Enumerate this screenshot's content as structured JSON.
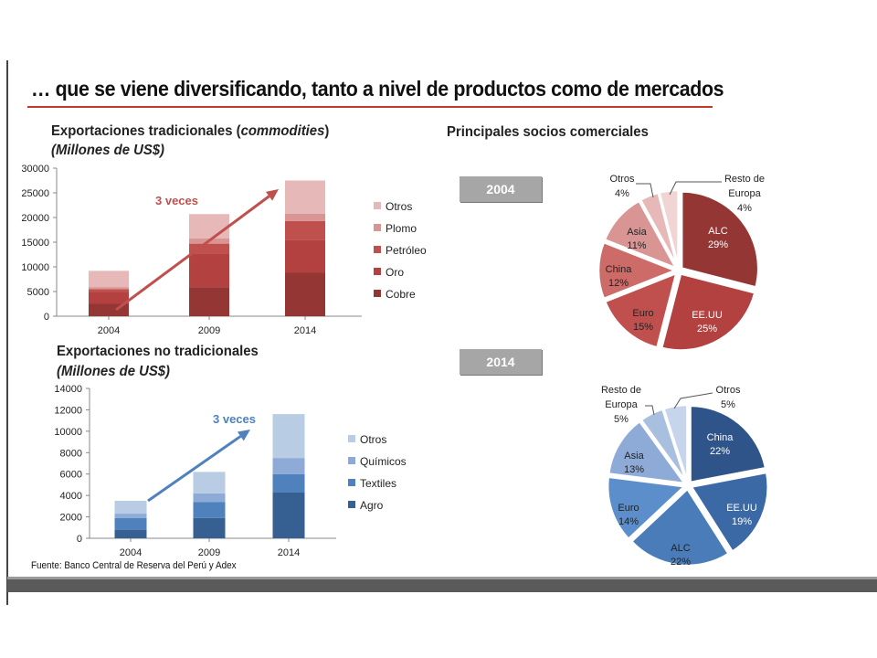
{
  "title": "… que se viene diversificando, tanto a nivel de productos como de mercados",
  "source": "Fuente: Banco Central de Reserva del Perú y Adex",
  "chart_data": [
    {
      "id": "trad",
      "type": "bar",
      "stacked": true,
      "title": "Exportaciones tradicionales (commodities)",
      "title_plain": "Exportaciones tradicionales (",
      "title_italic": "commodities",
      "title_end": ")",
      "subtitle": "(Millones de US$)",
      "categories": [
        "2004",
        "2009",
        "2014"
      ],
      "ylim": [
        0,
        30000
      ],
      "yticks": [
        0,
        5000,
        10000,
        15000,
        20000,
        25000,
        30000
      ],
      "ytick_labels": [
        "0",
        "5000",
        "10000",
        "15000",
        "20000",
        "25000",
        "30000"
      ],
      "annotation": "3 veces",
      "legend_position": "right",
      "series": [
        {
          "name": "Cobre",
          "color": "#943634",
          "values": [
            2500,
            5900,
            8800
          ]
        },
        {
          "name": "Oro",
          "color": "#b24140",
          "values": [
            2400,
            6800,
            6700
          ]
        },
        {
          "name": "Petróleo",
          "color": "#c0504d",
          "values": [
            600,
            2000,
            3800
          ]
        },
        {
          "name": "Plomo",
          "color": "#d99594",
          "values": [
            400,
            1100,
            1500
          ]
        },
        {
          "name": "Otros",
          "color": "#e6b9b8",
          "values": [
            3300,
            4900,
            6700
          ]
        }
      ]
    },
    {
      "id": "notrad",
      "type": "bar",
      "stacked": true,
      "title": "Exportaciones no tradicionales",
      "subtitle": "(Millones de US$)",
      "categories": [
        "2004",
        "2009",
        "2014"
      ],
      "ylim": [
        0,
        14000
      ],
      "yticks": [
        0,
        2000,
        4000,
        6000,
        8000,
        10000,
        12000,
        14000
      ],
      "ytick_labels": [
        "0",
        "2000",
        "4000",
        "6000",
        "8000",
        "10000",
        "12000",
        "14000"
      ],
      "annotation": "3 veces",
      "legend_position": "right",
      "series": [
        {
          "name": "Agro",
          "color": "#366092",
          "values": [
            800,
            1900,
            4300
          ]
        },
        {
          "name": "Textiles",
          "color": "#4f81bd",
          "values": [
            1100,
            1500,
            1700
          ]
        },
        {
          "name": "Químicos",
          "color": "#8eaad7",
          "values": [
            400,
            800,
            1500
          ]
        },
        {
          "name": "Otros",
          "color": "#b8cce4",
          "values": [
            1200,
            2000,
            4100
          ]
        }
      ]
    },
    {
      "id": "pie2004",
      "type": "pie",
      "title": "Principales socios comerciales",
      "tag": "2004",
      "slices": [
        {
          "label": "ALC",
          "value": 29,
          "text": "29%",
          "color": "#943634"
        },
        {
          "label": "EE.UU",
          "value": 25,
          "text": "25%",
          "color": "#b24140"
        },
        {
          "label": "Euro",
          "value": 15,
          "text": "15%",
          "color": "#c0504d"
        },
        {
          "label": "China",
          "value": 12,
          "text": "12%",
          "color": "#cd6b68"
        },
        {
          "label": "Asia",
          "value": 11,
          "text": "11%",
          "color": "#d99594"
        },
        {
          "label": "Otros",
          "value": 4,
          "text": "4%",
          "color": "#e6b9b8"
        },
        {
          "label": "Resto de Europa",
          "value": 4,
          "text": "4%",
          "color": "#f0d5d4"
        }
      ]
    },
    {
      "id": "pie2014",
      "type": "pie",
      "tag": "2014",
      "slices": [
        {
          "label": "China",
          "value": 22,
          "text": "22%",
          "color": "#2e5489"
        },
        {
          "label": "EE.UU",
          "value": 19,
          "text": "19%",
          "color": "#3b69a5"
        },
        {
          "label": "ALC",
          "value": 22,
          "text": "22%",
          "color": "#4a7cb9"
        },
        {
          "label": "Euro",
          "value": 14,
          "text": "14%",
          "color": "#5b8ecb"
        },
        {
          "label": "Asia",
          "value": 13,
          "text": "13%",
          "color": "#8eaad7"
        },
        {
          "label": "Resto de Europa",
          "value": 5,
          "text": "5%",
          "color": "#a8bfe0"
        },
        {
          "label": "Otros",
          "value": 5,
          "text": "5%",
          "color": "#c6d5ec"
        }
      ]
    }
  ]
}
